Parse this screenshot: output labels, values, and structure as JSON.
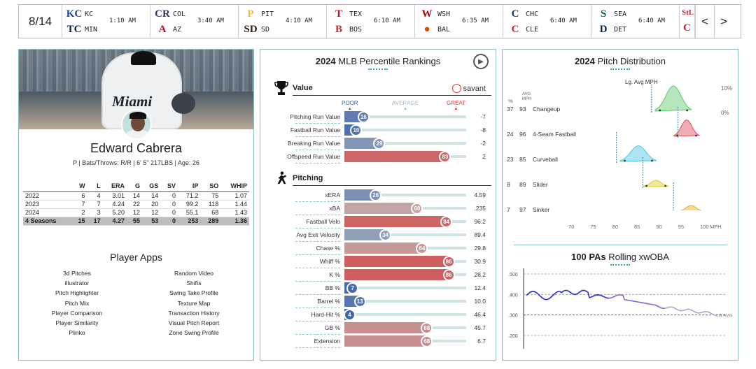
{
  "scores": {
    "date": "8/14",
    "games": [
      {
        "away": "KC",
        "home": "MIN",
        "time": "1:10 AM",
        "away_icon": "royals-logo-icon",
        "home_icon": "twins-logo-icon",
        "away_glyph": "KC",
        "home_glyph": "TC",
        "away_color": "#1a4790",
        "home_color": "#0c2340"
      },
      {
        "away": "COL",
        "home": "AZ",
        "time": "3:40 AM",
        "away_icon": "rockies-logo-icon",
        "home_icon": "dbacks-logo-icon",
        "away_glyph": "CR",
        "home_glyph": "A",
        "away_color": "#333366",
        "home_color": "#a71930"
      },
      {
        "away": "PIT",
        "home": "SD",
        "time": "4:10 AM",
        "away_icon": "pirates-logo-icon",
        "home_icon": "padres-logo-icon",
        "away_glyph": "P",
        "home_glyph": "SD",
        "away_color": "#fdb827",
        "home_color": "#2f241d"
      },
      {
        "away": "TEX",
        "home": "BOS",
        "time": "6:10 AM",
        "away_icon": "rangers-logo-icon",
        "home_icon": "redsox-logo-icon",
        "away_glyph": "T",
        "home_glyph": "B",
        "away_color": "#c0111f",
        "home_color": "#bd3039"
      },
      {
        "away": "WSH",
        "home": "BAL",
        "time": "6:35 AM",
        "away_icon": "nationals-logo-icon",
        "home_icon": "orioles-logo-icon",
        "away_glyph": "W",
        "home_glyph": "●",
        "away_color": "#ab0003",
        "home_color": "#df4601"
      },
      {
        "away": "CHC",
        "home": "CLE",
        "time": "6:40 AM",
        "away_icon": "cubs-logo-icon",
        "home_icon": "guardians-logo-icon",
        "away_glyph": "C",
        "home_glyph": "C",
        "away_color": "#0e3386",
        "home_color": "#e31937"
      },
      {
        "away": "SEA",
        "home": "DET",
        "time": "6:40 AM",
        "away_icon": "mariners-logo-icon",
        "home_icon": "tigers-logo-icon",
        "away_glyph": "S",
        "home_glyph": "D",
        "away_color": "#005c5c",
        "home_color": "#0c2340"
      }
    ],
    "extra_icon": "cardinals-logo-icon",
    "extra_glyph": "StL",
    "extra_glyph2": "C",
    "prev": "<",
    "next": ">"
  },
  "player": {
    "name": "Edward Cabrera",
    "info": "P | Bats/Throws: R/R | 6' 5\" 217LBS | Age: 26",
    "jersey": "Miami",
    "stats_headers": [
      "",
      "W",
      "L",
      "ERA",
      "G",
      "GS",
      "SV",
      "IP",
      "SO",
      "WHIP"
    ],
    "stats_rows": [
      [
        "2022",
        "6",
        "4",
        "3.01",
        "14",
        "14",
        "0",
        "71.2",
        "75",
        "1.07"
      ],
      [
        "2023",
        "7",
        "7",
        "4.24",
        "22",
        "20",
        "0",
        "99.2",
        "118",
        "1.44"
      ],
      [
        "2024",
        "2",
        "3",
        "5.20",
        "12",
        "12",
        "0",
        "55.1",
        "68",
        "1.43"
      ]
    ],
    "stats_total": [
      "4 Seasons",
      "15",
      "17",
      "4.27",
      "55",
      "53",
      "0",
      "253",
      "289",
      "1.36"
    ]
  },
  "apps": {
    "title": "Player Apps",
    "left": [
      "3d Pitches",
      "illustrator",
      "Pitch Highlighter",
      "Pitch Mix",
      "Player Comparison",
      "Player Similarity",
      "Plinko"
    ],
    "right": [
      "Random Video",
      "Shifts",
      "Swing Take Profile",
      "Texture Map",
      "Transaction History",
      "Visual Pitch Report",
      "Zone Swing Profile"
    ]
  },
  "rankings": {
    "year": "2024",
    "title": "MLB Percentile Rankings",
    "value_label": "Value",
    "pitching_label": "Pitching",
    "savant": "savant",
    "poor": "POOR",
    "average": "AVERAGE",
    "great": "GREAT",
    "value_rows": [
      {
        "label": "Pitching Run Value",
        "pct": 16,
        "val": "-7"
      },
      {
        "label": "Fastball Run Value",
        "pct": 10,
        "val": "-8"
      },
      {
        "label": "Breaking Run Value",
        "pct": 29,
        "val": "-2"
      },
      {
        "label": "Offspeed Run Value",
        "pct": 83,
        "val": "2"
      }
    ],
    "pitching_rows": [
      {
        "label": "xERA",
        "pct": 26,
        "val": "4.59"
      },
      {
        "label": "xBA",
        "pct": 60,
        "val": ".235"
      },
      {
        "label": "Fastball Velo",
        "pct": 84,
        "val": "96.2"
      },
      {
        "label": "Avg Exit Velocity",
        "pct": 34,
        "val": "89.4"
      },
      {
        "label": "Chase %",
        "pct": 64,
        "val": "29.8"
      },
      {
        "label": "Whiff %",
        "pct": 86,
        "val": "30.9"
      },
      {
        "label": "K %",
        "pct": 86,
        "val": "28.2"
      },
      {
        "label": "BB %",
        "pct": 7,
        "val": "12.4"
      },
      {
        "label": "Barrel %",
        "pct": 13,
        "val": "10.0"
      },
      {
        "label": "Hard-Hit %",
        "pct": 4,
        "val": "46.4"
      },
      {
        "label": "GB %",
        "pct": 68,
        "val": "45.7"
      },
      {
        "label": "Extension",
        "pct": 68,
        "val": "6.7"
      }
    ]
  },
  "distribution": {
    "year": "2024",
    "title": "Pitch Distribution",
    "lg_label": "Lg. Avg MPH",
    "pct_head": "%",
    "avg_head": "AVG MPH",
    "scale_top": "10%",
    "scale_bottom": "0%",
    "pitches": [
      {
        "pct": "37",
        "mph": "93",
        "name": "Changeup",
        "mph_num": 93,
        "lg": 88,
        "color": "#5bc86a"
      },
      {
        "pct": "24",
        "mph": "96",
        "name": "4-Seam Fastball",
        "mph_num": 96,
        "lg": 94,
        "color": "#e04a55"
      },
      {
        "pct": "23",
        "mph": "85",
        "name": "Curveball",
        "mph_num": 85,
        "lg": 80,
        "color": "#47c6e0"
      },
      {
        "pct": "8",
        "mph": "89",
        "name": "Slider",
        "mph_num": 89,
        "lg": 86,
        "color": "#d8cc30"
      },
      {
        "pct": "7",
        "mph": "97",
        "name": "Sinker",
        "mph_num": 97,
        "lg": 93,
        "color": "#e0b030"
      }
    ],
    "x_ticks": [
      "70",
      "75",
      "80",
      "85",
      "90",
      "95",
      "100"
    ],
    "x_unit": "MPH"
  },
  "xwoba": {
    "num": "100 PAs",
    "title": "Rolling xwOBA",
    "y_ticks": [
      ".500",
      ".400",
      ".300",
      ".200"
    ],
    "lg_label": "LG AVG"
  }
}
